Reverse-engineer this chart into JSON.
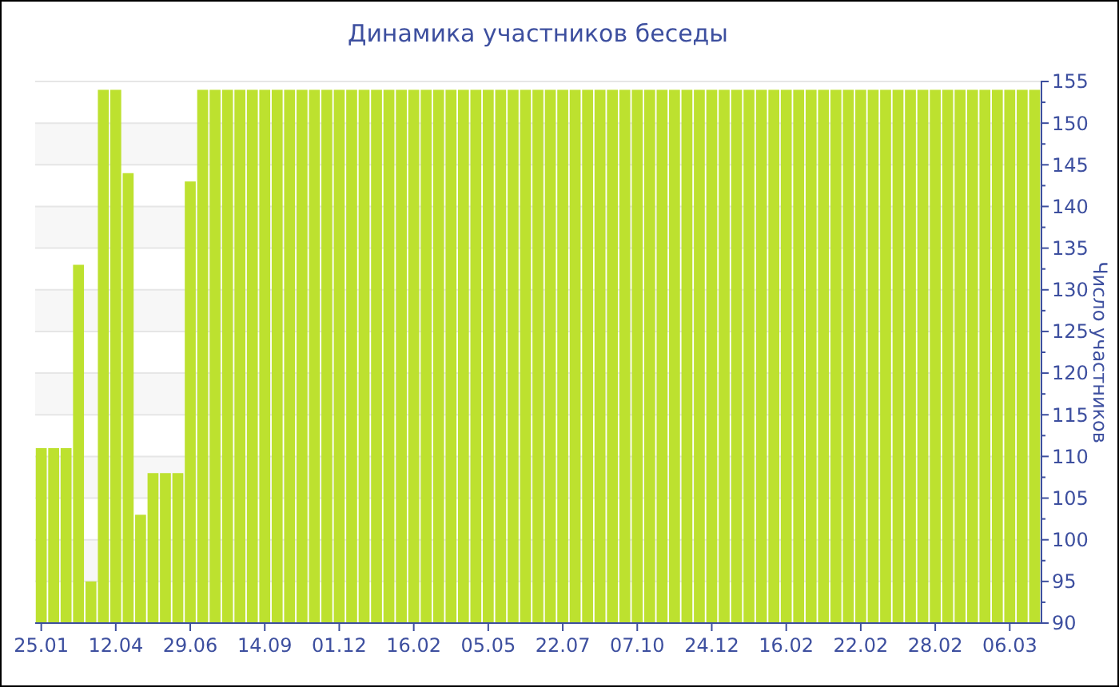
{
  "chart_data": {
    "type": "bar",
    "title": "Динамика участников беседы",
    "ylabel": "Число участников",
    "categories": [
      "25.01",
      null,
      null,
      null,
      null,
      null,
      "12.04",
      null,
      null,
      null,
      null,
      null,
      "29.06",
      null,
      null,
      null,
      null,
      null,
      "14.09",
      null,
      null,
      null,
      null,
      null,
      "01.12",
      null,
      null,
      null,
      null,
      null,
      "16.02",
      null,
      null,
      null,
      null,
      null,
      "05.05",
      null,
      null,
      null,
      null,
      null,
      "22.07",
      null,
      null,
      null,
      null,
      null,
      "07.10",
      null,
      null,
      null,
      null,
      null,
      "24.12",
      null,
      null,
      null,
      null,
      null,
      "16.02",
      null,
      null,
      null,
      null,
      null,
      "22.02",
      null,
      null,
      null,
      null,
      null,
      "28.02",
      null,
      null,
      null,
      null,
      null,
      "06.03",
      null,
      null
    ],
    "values": [
      111,
      111,
      111,
      133,
      95,
      154,
      154,
      144,
      103,
      108,
      108,
      108,
      143,
      154,
      154,
      154,
      154,
      154,
      154,
      154,
      154,
      154,
      154,
      154,
      154,
      154,
      154,
      154,
      154,
      154,
      154,
      154,
      154,
      154,
      154,
      154,
      154,
      154,
      154,
      154,
      154,
      154,
      154,
      154,
      154,
      154,
      154,
      154,
      154,
      154,
      154,
      154,
      154,
      154,
      154,
      154,
      154,
      154,
      154,
      154,
      154,
      154,
      154,
      154,
      154,
      154,
      154,
      154,
      154,
      154,
      154,
      154,
      154,
      154,
      154,
      154,
      154,
      154,
      154,
      154,
      154
    ],
    "color": "#bde12f",
    "ylim": [
      90,
      155
    ],
    "yticks": [
      90,
      95,
      100,
      105,
      110,
      115,
      120,
      125,
      130,
      135,
      140,
      145,
      150,
      155
    ],
    "grid": "y"
  }
}
